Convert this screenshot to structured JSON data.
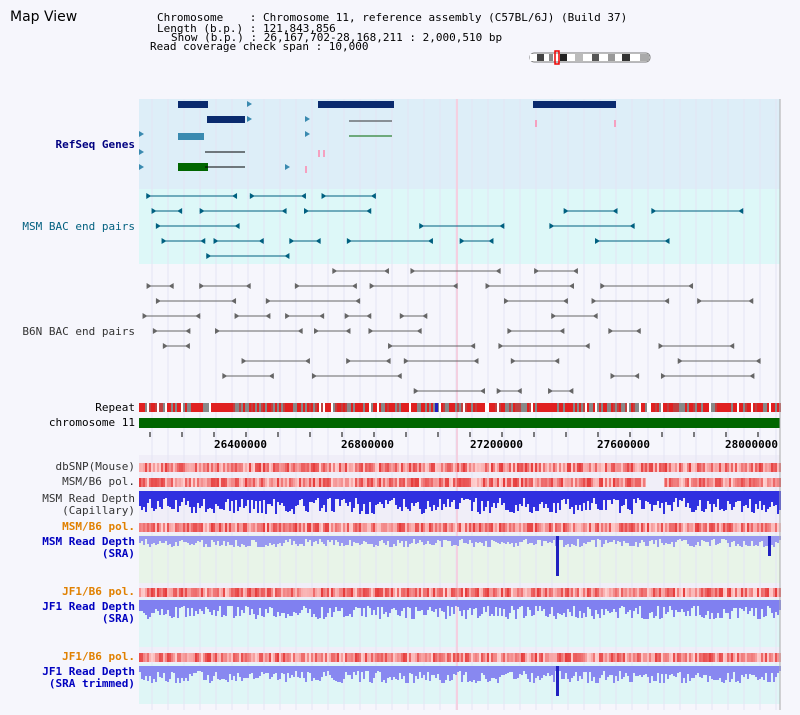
{
  "header": {
    "map_title": "Map View",
    "chromosome_line": "Chromosome    : Chromosome 11, reference assembly (C57BL/6J) (Build 37)",
    "length_line": "Length (b.p.) : 121,843,856",
    "show_line": "Show (b.p.) : 26,167,702-28,168,211 : 2,000,510 bp",
    "coverage_line": "Read coverage check span : 10,000"
  },
  "tracks": {
    "refseq": "RefSeq Genes",
    "msm_bac": "MSM BAC end pairs",
    "b6n_bac": "B6N BAC end pairs",
    "repeat": "Repeat",
    "chromosome": "chromosome 11",
    "dbsnp": "dbSNP(Mouse)",
    "msm_pol": "MSM/B6 pol.",
    "msm_depth_cap_1": "MSM Read Depth",
    "msm_depth_cap_2": "(Capillary)",
    "msm_pol2": "MSM/B6 pol.",
    "msm_depth_sra_1": "MSM Read Depth",
    "msm_depth_sra_2": "(SRA)",
    "jf1_pol": "JF1/B6 pol.",
    "jf1_depth_sra_1": "JF1 Read Depth",
    "jf1_depth_sra_2": "(SRA)",
    "jf1_pol2": "JF1/B6 pol.",
    "jf1_depth_trim_1": "JF1 Read Depth",
    "jf1_depth_trim_2": "(SRA trimmed)"
  },
  "axis": {
    "ticks": [
      "26400000",
      "26800000",
      "27200000",
      "27600000",
      "28000000"
    ]
  },
  "colors": {
    "navy": "#0a2a6e",
    "teal": "#006080",
    "gray": "#666666",
    "refseq_bg": "#ddeef8",
    "msm_bg": "#ddf8f8",
    "chrom_green": "#006600",
    "depth_blue": "#3333ee",
    "pol_red": "#ee3333"
  }
}
